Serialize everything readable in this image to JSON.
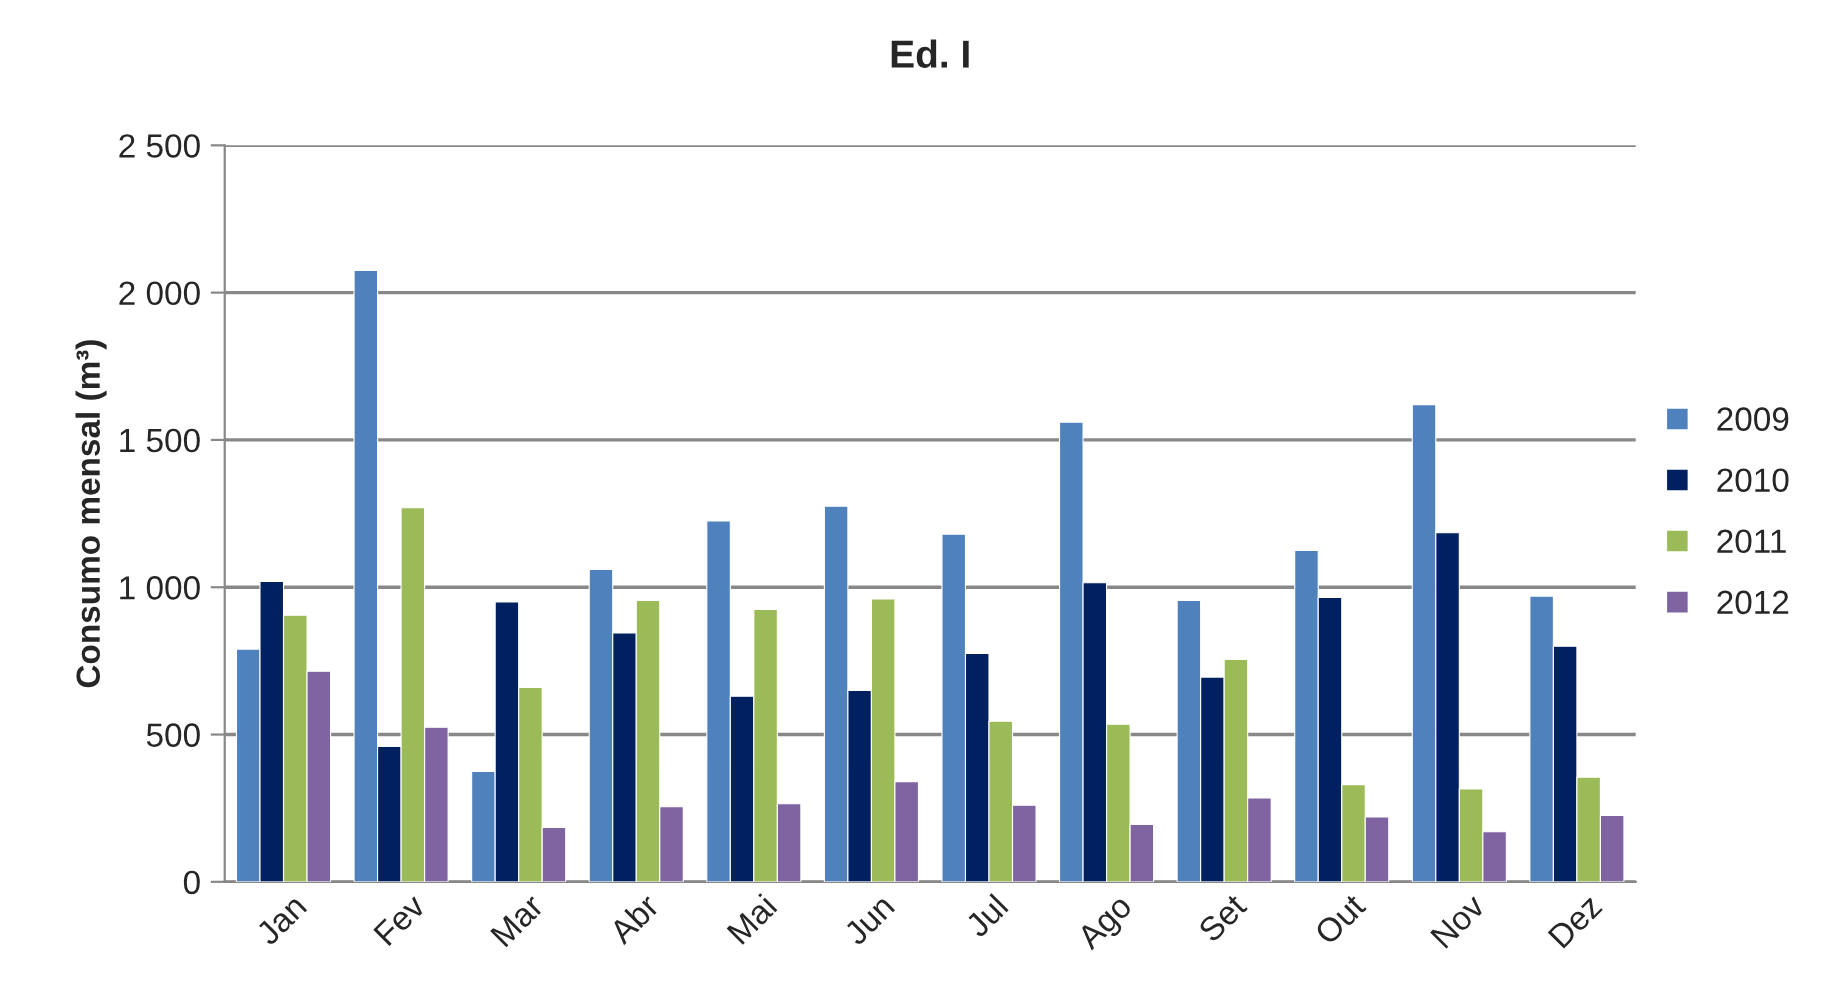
{
  "chart_data": {
    "type": "bar",
    "title": "Ed. I",
    "ylabel": "Consumo mensal (m³)",
    "categories": [
      "Jan",
      "Fev",
      "Mar",
      "Abr",
      "Mai",
      "Jun",
      "Jul",
      "Ago",
      "Set",
      "Out",
      "Nov",
      "Dez"
    ],
    "series": [
      {
        "name": "2009",
        "color": "#4f81bd",
        "values": [
          790,
          2075,
          375,
          1060,
          1225,
          1275,
          1180,
          1560,
          955,
          1125,
          1620,
          970
        ]
      },
      {
        "name": "2010",
        "color": "#002060",
        "values": [
          1020,
          460,
          950,
          845,
          630,
          650,
          775,
          1015,
          695,
          965,
          1185,
          800
        ]
      },
      {
        "name": "2011",
        "color": "#9bbb59",
        "values": [
          905,
          1270,
          660,
          955,
          925,
          960,
          545,
          535,
          755,
          330,
          315,
          355
        ]
      },
      {
        "name": "2012",
        "color": "#8064a2",
        "values": [
          715,
          525,
          185,
          255,
          265,
          340,
          260,
          195,
          285,
          220,
          170,
          225
        ]
      }
    ],
    "ylim": [
      0,
      2500
    ],
    "yticks": [
      0,
      {
        "value": 500,
        "label": "500"
      },
      {
        "value": 1000,
        "label": "1 000"
      },
      {
        "value": 1500,
        "label": "1 500"
      },
      {
        "value": 2000,
        "label": "2 000"
      },
      {
        "value": 2500,
        "label": "2 500"
      }
    ],
    "grid": "y",
    "legend": "right"
  }
}
